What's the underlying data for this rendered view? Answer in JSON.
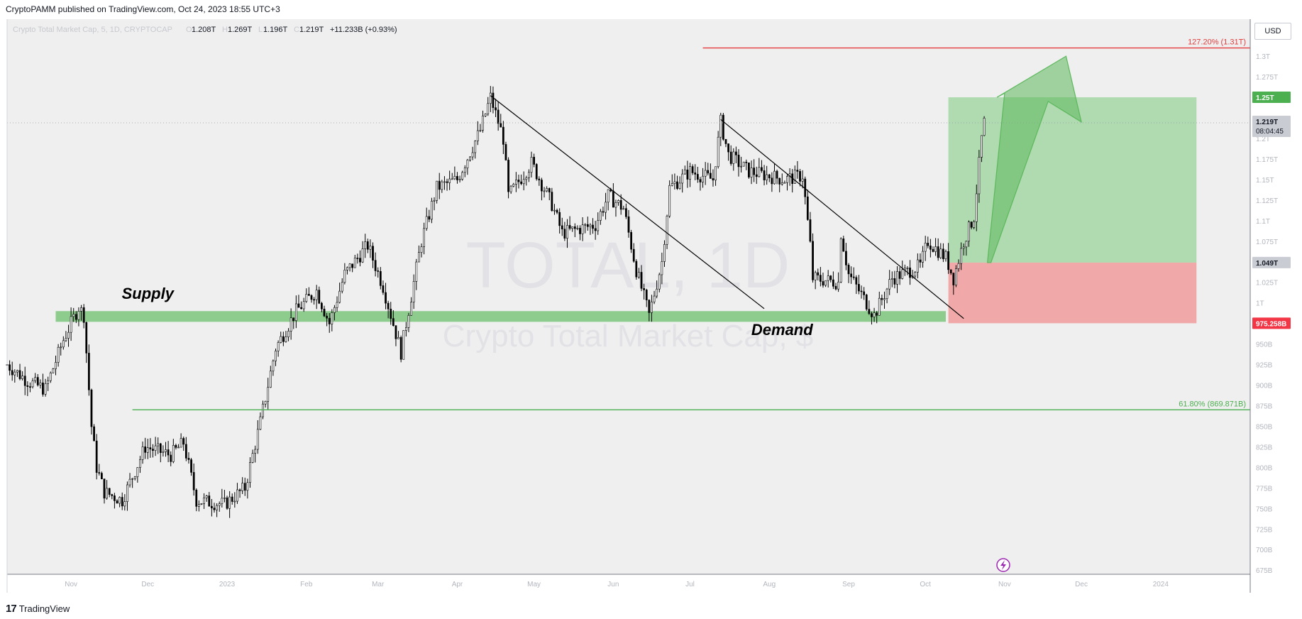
{
  "header": {
    "published": "CryptoPAMM published on TradingView.com, Oct 24, 2023 18:55 UTC+3"
  },
  "legend": {
    "symbol": "Crypto Total Market Cap, 5, 1D, CRYPTOCAP",
    "open_label": "O",
    "open": "1.208T",
    "high_label": "H",
    "high": "1.269T",
    "low_label": "L",
    "low": "1.196T",
    "close_label": "C",
    "close": "1.219T",
    "change": "+11.233B (+0.93%)"
  },
  "watermark": {
    "ticker": "TOTAL, 1D",
    "name": "Crypto Total Market Cap, $"
  },
  "currency": "USD",
  "footer": {
    "brand": "TradingView",
    "logo": "17"
  },
  "colors": {
    "background": "#efefef",
    "supply_demand_zone": "#7dc67d",
    "fib_127": "#e33b3b",
    "fib_618": "#4caf50",
    "profit_zone": "#9bd39b",
    "loss_zone": "#f0a0a0",
    "label_green": "#4caf50",
    "label_red": "#f23645",
    "label_gray": "#c9ccd3",
    "arrow": "#5cb85c"
  },
  "chart_data": {
    "type": "candlestick",
    "title": "Crypto Total Market Cap, 5, 1D, CRYPTOCAP",
    "y_unit": "USD",
    "ylim": [
      670,
      1345
    ],
    "y_ticks": [
      {
        "value": 1300,
        "label": "1.3T"
      },
      {
        "value": 1275,
        "label": "1.275T"
      },
      {
        "value": 1250,
        "label": "1.25T"
      },
      {
        "value": 1225,
        "label": "1.225T"
      },
      {
        "value": 1200,
        "label": "1.2T"
      },
      {
        "value": 1175,
        "label": "1.175T"
      },
      {
        "value": 1150,
        "label": "1.15T"
      },
      {
        "value": 1125,
        "label": "1.125T"
      },
      {
        "value": 1100,
        "label": "1.1T"
      },
      {
        "value": 1075,
        "label": "1.075T"
      },
      {
        "value": 1050,
        "label": "1.05T"
      },
      {
        "value": 1025,
        "label": "1.025T"
      },
      {
        "value": 1000,
        "label": "1T"
      },
      {
        "value": 975,
        "label": "975B"
      },
      {
        "value": 950,
        "label": "950B"
      },
      {
        "value": 925,
        "label": "925B"
      },
      {
        "value": 900,
        "label": "900B"
      },
      {
        "value": 875,
        "label": "875B"
      },
      {
        "value": 850,
        "label": "850B"
      },
      {
        "value": 825,
        "label": "825B"
      },
      {
        "value": 800,
        "label": "800B"
      },
      {
        "value": 775,
        "label": "775B"
      },
      {
        "value": 750,
        "label": "750B"
      },
      {
        "value": 725,
        "label": "725B"
      },
      {
        "value": 700,
        "label": "700B"
      },
      {
        "value": 675,
        "label": "675B"
      }
    ],
    "x_ticks": [
      {
        "date": "2022-11-01",
        "label": "Nov"
      },
      {
        "date": "2022-12-01",
        "label": "Dec"
      },
      {
        "date": "2023-01-01",
        "label": "2023"
      },
      {
        "date": "2023-02-01",
        "label": "Feb"
      },
      {
        "date": "2023-03-01",
        "label": "Mar"
      },
      {
        "date": "2023-04-01",
        "label": "Apr"
      },
      {
        "date": "2023-05-01",
        "label": "May"
      },
      {
        "date": "2023-06-01",
        "label": "Jun"
      },
      {
        "date": "2023-07-01",
        "label": "Jul"
      },
      {
        "date": "2023-08-01",
        "label": "Aug"
      },
      {
        "date": "2023-09-01",
        "label": "Sep"
      },
      {
        "date": "2023-10-01",
        "label": "Oct"
      },
      {
        "date": "2023-11-01",
        "label": "Nov"
      },
      {
        "date": "2023-12-01",
        "label": "Dec"
      },
      {
        "date": "2024-01-01",
        "label": "2024"
      }
    ],
    "x_range": [
      "2022-10-07",
      "2024-02-05"
    ],
    "price_path": [
      {
        "date": "2022-10-07",
        "close": 925
      },
      {
        "date": "2022-10-15",
        "close": 905
      },
      {
        "date": "2022-10-22",
        "close": 895
      },
      {
        "date": "2022-10-29",
        "close": 955
      },
      {
        "date": "2022-11-04",
        "close": 995
      },
      {
        "date": "2022-11-06",
        "close": 985
      },
      {
        "date": "2022-11-09",
        "close": 850
      },
      {
        "date": "2022-11-11",
        "close": 800
      },
      {
        "date": "2022-11-14",
        "close": 770
      },
      {
        "date": "2022-11-21",
        "close": 760
      },
      {
        "date": "2022-11-30",
        "close": 825
      },
      {
        "date": "2022-12-10",
        "close": 815
      },
      {
        "date": "2022-12-15",
        "close": 830
      },
      {
        "date": "2022-12-20",
        "close": 760
      },
      {
        "date": "2022-12-31",
        "close": 755
      },
      {
        "date": "2023-01-08",
        "close": 775
      },
      {
        "date": "2023-01-14",
        "close": 855
      },
      {
        "date": "2023-01-20",
        "close": 945
      },
      {
        "date": "2023-01-28",
        "close": 990
      },
      {
        "date": "2023-02-05",
        "close": 1015
      },
      {
        "date": "2023-02-10",
        "close": 975
      },
      {
        "date": "2023-02-16",
        "close": 1035
      },
      {
        "date": "2023-02-25",
        "close": 1070
      },
      {
        "date": "2023-03-03",
        "close": 1020
      },
      {
        "date": "2023-03-10",
        "close": 940
      },
      {
        "date": "2023-03-12",
        "close": 975
      },
      {
        "date": "2023-03-18",
        "close": 1075
      },
      {
        "date": "2023-03-24",
        "close": 1140
      },
      {
        "date": "2023-04-01",
        "close": 1150
      },
      {
        "date": "2023-04-10",
        "close": 1210
      },
      {
        "date": "2023-04-14",
        "close": 1250
      },
      {
        "date": "2023-04-19",
        "close": 1200
      },
      {
        "date": "2023-04-21",
        "close": 1130
      },
      {
        "date": "2023-04-30",
        "close": 1170
      },
      {
        "date": "2023-05-08",
        "close": 1120
      },
      {
        "date": "2023-05-12",
        "close": 1085
      },
      {
        "date": "2023-05-25",
        "close": 1095
      },
      {
        "date": "2023-05-30",
        "close": 1130
      },
      {
        "date": "2023-06-05",
        "close": 1115
      },
      {
        "date": "2023-06-10",
        "close": 1040
      },
      {
        "date": "2023-06-15",
        "close": 985
      },
      {
        "date": "2023-06-20",
        "close": 1050
      },
      {
        "date": "2023-06-23",
        "close": 1140
      },
      {
        "date": "2023-07-01",
        "close": 1160
      },
      {
        "date": "2023-07-10",
        "close": 1150
      },
      {
        "date": "2023-07-13",
        "close": 1220
      },
      {
        "date": "2023-07-16",
        "close": 1180
      },
      {
        "date": "2023-07-24",
        "close": 1160
      },
      {
        "date": "2023-08-07",
        "close": 1150
      },
      {
        "date": "2023-08-14",
        "close": 1155
      },
      {
        "date": "2023-08-17",
        "close": 1070
      },
      {
        "date": "2023-08-18",
        "close": 1030
      },
      {
        "date": "2023-08-28",
        "close": 1025
      },
      {
        "date": "2023-08-29",
        "close": 1085
      },
      {
        "date": "2023-09-01",
        "close": 1035
      },
      {
        "date": "2023-09-11",
        "close": 985
      },
      {
        "date": "2023-09-18",
        "close": 1030
      },
      {
        "date": "2023-09-29",
        "close": 1045
      },
      {
        "date": "2023-10-02",
        "close": 1075
      },
      {
        "date": "2023-10-09",
        "close": 1055
      },
      {
        "date": "2023-10-12",
        "close": 1030
      },
      {
        "date": "2023-10-16",
        "close": 1075
      },
      {
        "date": "2023-10-20",
        "close": 1105
      },
      {
        "date": "2023-10-23",
        "close": 1200
      },
      {
        "date": "2023-10-24",
        "close": 1219
      }
    ],
    "horizontal_levels": [
      {
        "name": "fib-127",
        "value": 1310,
        "label": "127.20% (1.31T)",
        "start": "2023-07-06",
        "end": "2024-02-05"
      },
      {
        "name": "fib-618",
        "value": 870,
        "label": "61.80% (869.871B)",
        "start": "2022-11-25",
        "end": "2024-02-05"
      }
    ],
    "zones": [
      {
        "name": "supply-demand-zone",
        "start": "2022-10-26",
        "end": "2023-10-09",
        "low": 977,
        "high": 990
      }
    ],
    "trendlines": [
      {
        "name": "trendline-april",
        "from": {
          "date": "2023-04-14",
          "value": 1252
        },
        "to": {
          "date": "2023-07-30",
          "value": 993
        }
      },
      {
        "name": "trendline-july",
        "from": {
          "date": "2023-07-13",
          "value": 1223
        },
        "to": {
          "date": "2023-10-16",
          "value": 981
        }
      }
    ],
    "position": {
      "start": "2023-10-10",
      "end": "2024-01-15",
      "target": 1250,
      "entry": 1049,
      "stop": 975.258
    },
    "annotations": [
      {
        "text": "Supply",
        "date": "2022-12-01",
        "value": 1005
      },
      {
        "text": "Demand",
        "date": "2023-08-06",
        "value": 961
      }
    ],
    "price_labels": [
      {
        "name": "target-price-label",
        "value": 1250,
        "text": "1.25T",
        "kind": "green"
      },
      {
        "name": "current-price-label",
        "value": 1219,
        "text": "1.219T",
        "sub": "08:04:45",
        "kind": "gray"
      },
      {
        "name": "entry-price-label",
        "value": 1049,
        "text": "1.049T",
        "kind": "gray"
      },
      {
        "name": "stop-price-label",
        "value": 975.258,
        "text": "975.258B",
        "kind": "red"
      }
    ]
  }
}
